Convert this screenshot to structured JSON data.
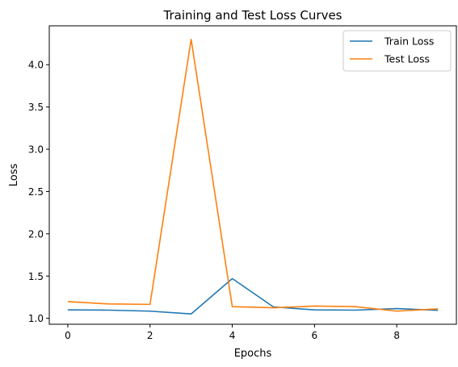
{
  "chart_data": {
    "type": "line",
    "title": "Training and Test Loss Curves",
    "xlabel": "Epochs",
    "ylabel": "Loss",
    "xlim": [
      -0.45,
      9.45
    ],
    "ylim": [
      0.93,
      4.46
    ],
    "xticks": [
      0,
      2,
      4,
      6,
      8
    ],
    "xtick_labels": [
      "0",
      "2",
      "4",
      "6",
      "8"
    ],
    "yticks": [
      1.0,
      1.5,
      2.0,
      2.5,
      3.0,
      3.5,
      4.0
    ],
    "ytick_labels": [
      "1.0",
      "1.5",
      "2.0",
      "2.5",
      "3.0",
      "3.5",
      "4.0"
    ],
    "grid": false,
    "legend_position": "top-right",
    "x": [
      0,
      1,
      2,
      3,
      4,
      5,
      6,
      7,
      8,
      9
    ],
    "series": [
      {
        "name": "Train Loss",
        "color": "#1f77b4",
        "values": [
          1.1,
          1.097,
          1.085,
          1.052,
          1.47,
          1.135,
          1.1,
          1.097,
          1.115,
          1.095
        ]
      },
      {
        "name": "Test Loss",
        "color": "#ff7f0e",
        "values": [
          1.198,
          1.17,
          1.165,
          4.3,
          1.138,
          1.125,
          1.145,
          1.138,
          1.085,
          1.112
        ]
      }
    ]
  }
}
